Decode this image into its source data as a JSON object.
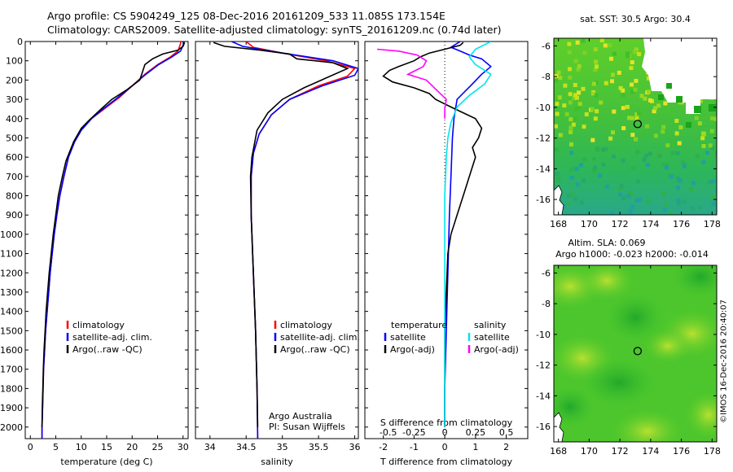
{
  "header": {
    "line1": "Argo profile: CS 5904249_125 08-Dec-2016 20161209_533 11.085S 173.154E",
    "line2": "Climatology: CARS2009. Satellite-adjusted climatology: synTS_20161209.nc (0.74d later)"
  },
  "colors": {
    "climatology": "#ff0000",
    "satellite": "#0000ff",
    "argo": "#000000",
    "sal_satellite": "#00e5ee",
    "sal_argo": "#ff00ff"
  },
  "chart_data": [
    {
      "type": "line",
      "id": "temperature",
      "xlabel": "temperature (deg C)",
      "ylabel": "",
      "xlim": [
        -1,
        31
      ],
      "ylim": [
        2060,
        0
      ],
      "xticks": [
        "0",
        "5",
        "10",
        "15",
        "20",
        "25",
        "30"
      ],
      "yticks": [
        "0",
        "100",
        "200",
        "300",
        "400",
        "500",
        "600",
        "700",
        "800",
        "900",
        "1000",
        "1100",
        "1200",
        "1300",
        "1400",
        "1500",
        "1600",
        "1700",
        "1800",
        "1900",
        "2000"
      ],
      "legend": [
        "climatology",
        "satellite-adj. clim.",
        "Argo(..raw -QC)"
      ],
      "series": [
        {
          "name": "climatology",
          "points": [
            [
              29.6,
              0
            ],
            [
              29.4,
              20
            ],
            [
              29,
              50
            ],
            [
              27.5,
              80
            ],
            [
              25,
              120
            ],
            [
              22.5,
              170
            ],
            [
              20,
              230
            ],
            [
              17.5,
              290
            ],
            [
              14.5,
              350
            ],
            [
              12,
              400
            ],
            [
              10,
              460
            ],
            [
              8.7,
              520
            ],
            [
              7.5,
              600
            ],
            [
              6.6,
              700
            ],
            [
              5.8,
              800
            ],
            [
              5.2,
              900
            ],
            [
              4.7,
              1000
            ],
            [
              4.3,
              1100
            ],
            [
              3.9,
              1200
            ],
            [
              3.6,
              1300
            ],
            [
              3.3,
              1400
            ],
            [
              3,
              1500
            ],
            [
              2.8,
              1600
            ],
            [
              2.6,
              1700
            ],
            [
              2.5,
              1800
            ],
            [
              2.4,
              1900
            ],
            [
              2.3,
              2000
            ],
            [
              2.3,
              2060
            ]
          ]
        },
        {
          "name": "satellite-adj. clim.",
          "points": [
            [
              30.2,
              0
            ],
            [
              30,
              20
            ],
            [
              29.5,
              50
            ],
            [
              27.8,
              80
            ],
            [
              25.2,
              120
            ],
            [
              22.7,
              170
            ],
            [
              20,
              230
            ],
            [
              17.2,
              290
            ],
            [
              14.3,
              350
            ],
            [
              12,
              400
            ],
            [
              10,
              460
            ],
            [
              8.7,
              520
            ],
            [
              7.5,
              600
            ],
            [
              6.6,
              700
            ],
            [
              5.8,
              800
            ],
            [
              5.2,
              900
            ],
            [
              4.7,
              1000
            ],
            [
              4.3,
              1100
            ],
            [
              3.9,
              1200
            ],
            [
              3.6,
              1300
            ],
            [
              3.3,
              1400
            ],
            [
              3,
              1500
            ],
            [
              2.8,
              1600
            ],
            [
              2.6,
              1700
            ],
            [
              2.5,
              1800
            ],
            [
              2.4,
              1900
            ],
            [
              2.3,
              2000
            ],
            [
              2.3,
              2060
            ]
          ]
        },
        {
          "name": "Argo(..raw -QC)",
          "points": [
            [
              30.3,
              5
            ],
            [
              30,
              25
            ],
            [
              29,
              45
            ],
            [
              26,
              65
            ],
            [
              24,
              90
            ],
            [
              22.5,
              120
            ],
            [
              22,
              160
            ],
            [
              21.5,
              200
            ],
            [
              19,
              250
            ],
            [
              16,
              300
            ],
            [
              13.5,
              360
            ],
            [
              11.5,
              410
            ],
            [
              10,
              450
            ],
            [
              8.5,
              520
            ],
            [
              7,
              620
            ],
            [
              6.3,
              700
            ],
            [
              5.5,
              800
            ],
            [
              5,
              900
            ],
            [
              4.5,
              1000
            ],
            [
              4.1,
              1100
            ],
            [
              3.7,
              1200
            ],
            [
              3.4,
              1300
            ],
            [
              3.1,
              1400
            ],
            [
              2.9,
              1500
            ],
            [
              2.7,
              1600
            ],
            [
              2.55,
              1700
            ],
            [
              2.45,
              1800
            ],
            [
              2.35,
              1900
            ],
            [
              2.3,
              2000
            ]
          ]
        }
      ]
    },
    {
      "type": "line",
      "id": "salinity",
      "xlabel": "salinity",
      "ylabel": "",
      "xlim": [
        33.8,
        36.05
      ],
      "ylim": [
        2060,
        0
      ],
      "xticks": [
        "34",
        "34.5",
        "35",
        "35.5",
        "36"
      ],
      "legend": [
        "climatology",
        "satellite-adj. clim.",
        "Argo(..raw -QC)"
      ],
      "annotation": [
        "Argo Australia",
        "PI: Susan Wijffels"
      ],
      "series": [
        {
          "name": "climatology",
          "points": [
            [
              34.5,
              0
            ],
            [
              34.6,
              30
            ],
            [
              35,
              60
            ],
            [
              35.6,
              100
            ],
            [
              36,
              140
            ],
            [
              35.9,
              180
            ],
            [
              35.5,
              230
            ],
            [
              35.1,
              300
            ],
            [
              34.85,
              380
            ],
            [
              34.68,
              480
            ],
            [
              34.6,
              580
            ],
            [
              34.57,
              700
            ],
            [
              34.57,
              900
            ],
            [
              34.6,
              1200
            ],
            [
              34.63,
              1500
            ],
            [
              34.65,
              1800
            ],
            [
              34.66,
              2060
            ]
          ]
        },
        {
          "name": "satellite-adj. clim.",
          "points": [
            [
              34.3,
              0
            ],
            [
              34.45,
              25
            ],
            [
              35,
              60
            ],
            [
              35.7,
              100
            ],
            [
              36.05,
              140
            ],
            [
              36,
              175
            ],
            [
              35.55,
              230
            ],
            [
              35.1,
              300
            ],
            [
              34.85,
              380
            ],
            [
              34.68,
              480
            ],
            [
              34.6,
              580
            ],
            [
              34.57,
              700
            ],
            [
              34.57,
              900
            ],
            [
              34.6,
              1200
            ],
            [
              34.63,
              1500
            ],
            [
              34.65,
              1800
            ],
            [
              34.66,
              2060
            ]
          ]
        },
        {
          "name": "Argo(..raw -QC)",
          "points": [
            [
              34.05,
              5
            ],
            [
              34.2,
              25
            ],
            [
              34.7,
              45
            ],
            [
              35.1,
              65
            ],
            [
              35.2,
              90
            ],
            [
              35.7,
              110
            ],
            [
              35.9,
              140
            ],
            [
              35.6,
              190
            ],
            [
              35.3,
              240
            ],
            [
              35,
              300
            ],
            [
              34.8,
              370
            ],
            [
              34.65,
              460
            ],
            [
              34.58,
              600
            ],
            [
              34.56,
              700
            ],
            [
              34.57,
              900
            ],
            [
              34.6,
              1200
            ],
            [
              34.63,
              1500
            ],
            [
              34.65,
              1800
            ],
            [
              34.66,
              2000
            ]
          ]
        }
      ]
    },
    {
      "type": "line",
      "id": "difference",
      "xlabel": "T difference from climatology",
      "xlabel_top": "S difference from climatology",
      "xlim": [
        -2.6,
        2.7
      ],
      "ylim": [
        2060,
        0
      ],
      "xticks": [
        "-2",
        "-1",
        "0",
        "1",
        "2"
      ],
      "xticks_top": [
        "-0.5",
        "-0.25",
        "0",
        "0.25",
        "0.5"
      ],
      "legend_t_title": "temperature",
      "legend_s_title": "salinity",
      "legend": [
        "satellite",
        "Argo(-adj)",
        "satellite",
        "Argo(-adj)"
      ],
      "series": [
        {
          "name": "T satellite",
          "points": [
            [
              0.5,
              0
            ],
            [
              0.2,
              30
            ],
            [
              0.5,
              50
            ],
            [
              0.8,
              70
            ],
            [
              1.2,
              90
            ],
            [
              1.5,
              130
            ],
            [
              1.2,
              170
            ],
            [
              0.9,
              220
            ],
            [
              0.4,
              300
            ],
            [
              0.3,
              400
            ],
            [
              0.25,
              500
            ],
            [
              0.2,
              700
            ],
            [
              0.15,
              900
            ],
            [
              0.1,
              1200
            ],
            [
              0.05,
              1500
            ],
            [
              0,
              1800
            ],
            [
              0,
              2000
            ]
          ]
        },
        {
          "name": "T Argo(-adj)",
          "points": [
            [
              0.6,
              5
            ],
            [
              0.5,
              20
            ],
            [
              0,
              40
            ],
            [
              -0.5,
              60
            ],
            [
              -0.8,
              80
            ],
            [
              -1,
              100
            ],
            [
              -1.5,
              130
            ],
            [
              -1.8,
              150
            ],
            [
              -2,
              180
            ],
            [
              -1.7,
              210
            ],
            [
              -1,
              240
            ],
            [
              -0.5,
              270
            ],
            [
              -0.3,
              300
            ],
            [
              0.2,
              340
            ],
            [
              1,
              400
            ],
            [
              1.2,
              450
            ],
            [
              1.1,
              500
            ],
            [
              0.9,
              550
            ],
            [
              1,
              600
            ],
            [
              0.8,
              700
            ],
            [
              0.6,
              800
            ],
            [
              0.4,
              900
            ],
            [
              0.2,
              1000
            ],
            [
              0.1,
              1100
            ],
            [
              0.05,
              1300
            ],
            [
              0,
              1500
            ],
            [
              0,
              1700
            ],
            [
              0,
              2000
            ]
          ]
        },
        {
          "name": "S satellite",
          "points": [
            [
              1.5,
              0
            ],
            [
              1,
              40
            ],
            [
              0.8,
              80
            ],
            [
              1,
              120
            ],
            [
              1.5,
              170
            ],
            [
              1.3,
              220
            ],
            [
              0.8,
              280
            ],
            [
              0.4,
              340
            ],
            [
              0.2,
              420
            ],
            [
              0.1,
              500
            ],
            [
              0.05,
              600
            ],
            [
              0,
              800
            ],
            [
              0,
              1000
            ],
            [
              0,
              1500
            ],
            [
              0,
              2000
            ]
          ]
        },
        {
          "name": "S Argo(-adj)",
          "points": [
            [
              -2.2,
              40
            ],
            [
              -1.5,
              50
            ],
            [
              -0.9,
              70
            ],
            [
              -0.6,
              100
            ],
            [
              -0.7,
              130
            ],
            [
              -1.2,
              170
            ],
            [
              -0.6,
              200
            ],
            [
              0.05,
              300
            ],
            [
              0,
              350
            ],
            [
              0,
              400
            ]
          ]
        }
      ]
    },
    {
      "type": "heatmap",
      "id": "sst_map",
      "title": "sat. SST: 30.5  Argo: 30.4",
      "xticks": [
        "168",
        "170",
        "172",
        "174",
        "176",
        "178"
      ],
      "yticks": [
        "-6",
        "-8",
        "-10",
        "-12",
        "-14",
        "-16"
      ],
      "xlim": [
        167.7,
        178.3
      ],
      "ylim": [
        -17,
        -5.5
      ],
      "profile": [
        173.154,
        -11.085
      ]
    },
    {
      "type": "heatmap",
      "id": "sla_map",
      "title": "Altim. SLA: 0.069",
      "subtitle": "Argo h1000: -0.023  h2000: -0.014",
      "xticks": [
        "168",
        "170",
        "172",
        "174",
        "176",
        "178"
      ],
      "yticks": [
        "-6",
        "-8",
        "-10",
        "-12",
        "-14",
        "-16"
      ],
      "xlim": [
        167.7,
        178.3
      ],
      "ylim": [
        -17,
        -5.5
      ],
      "profile": [
        173.154,
        -11.085
      ]
    }
  ],
  "credit": "©IMOS 16-Dec-2016 20:40:07"
}
